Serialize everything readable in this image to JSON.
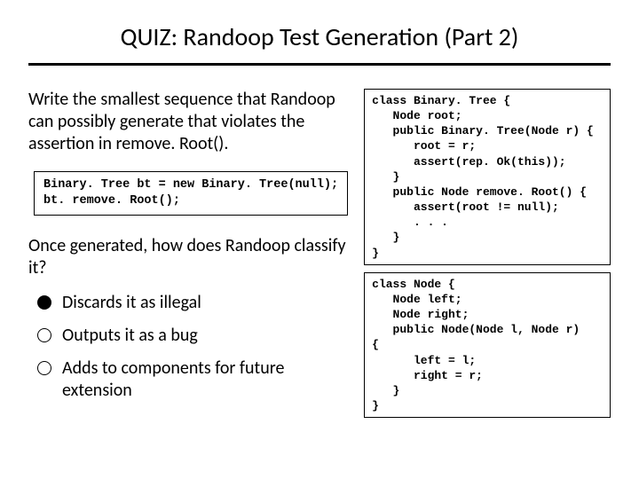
{
  "title": "QUIZ: Randoop Test Generation (Part 2)",
  "prompt": "Write the smallest sequence that Randoop can possibly generate that violates the assertion in remove. Root().",
  "answer_code": "Binary. Tree bt = new Binary. Tree(null);\nbt. remove. Root();",
  "question2": "Once generated, how does Randoop classify it?",
  "options": [
    {
      "label": "Discards it as illegal",
      "selected": true
    },
    {
      "label": "Outputs it as a bug",
      "selected": false
    },
    {
      "label": "Adds to components for future extension",
      "selected": false
    }
  ],
  "code_block1": "class Binary. Tree {\n   Node root;\n   public Binary. Tree(Node r) {\n      root = r;\n      assert(rep. Ok(this));\n   }\n   public Node remove. Root() {\n      assert(root != null);\n      . . .\n   }\n}",
  "code_block2": "class Node {\n   Node left;\n   Node right;\n   public Node(Node l, Node r)\n{\n      left = l;\n      right = r;\n   }\n}",
  "colors": {
    "text": "#000000",
    "background": "#ffffff",
    "border": "#000000"
  }
}
